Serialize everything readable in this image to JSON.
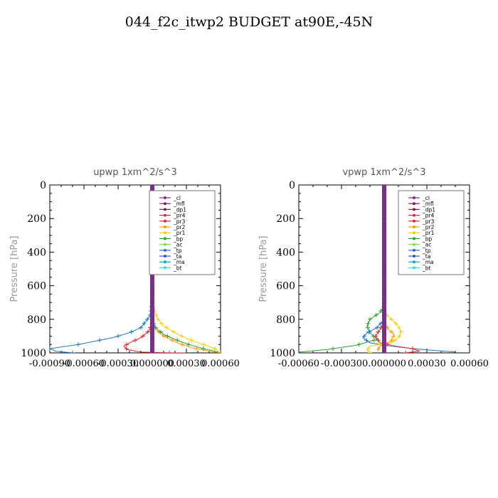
{
  "page": {
    "title": "044_f2c_itwp2  BUDGET at90E,-45N"
  },
  "chart_data": [
    {
      "type": "line",
      "title": "upwp   1xm^2/s^3",
      "ylabel": "Pressure [hPa]",
      "xlim": [
        -0.0009,
        0.0006
      ],
      "ylim": [
        1000,
        0
      ],
      "y_inverted": true,
      "xticks": [
        -0.0009,
        -0.0006,
        -0.0003,
        0.0,
        0.0003,
        0.0006
      ],
      "xtick_labels": [
        "-0.00090",
        "-0.00060",
        "-0.00030",
        "0.000000",
        "0.00030",
        "0.00060"
      ],
      "yticks": [
        0,
        200,
        400,
        600,
        800,
        1000
      ],
      "ytick_labels": [
        "0",
        "200",
        "400",
        "600",
        "800",
        "1000"
      ],
      "legend": {
        "position": "top-right",
        "entries": [
          "_cl",
          "_mfl",
          "_dp1",
          "_pr4",
          "_pr3",
          "_pr2",
          "_pr1",
          "_bp",
          "_ac",
          "_tp",
          "_ta",
          "_ma",
          "_bt"
        ]
      },
      "series": [
        {
          "name": "_tp",
          "color": "#1f77c4",
          "points": [
            [
              0,
              0
            ],
            [
              0,
              700
            ],
            [
              -2e-05,
              780
            ],
            [
              -0.0001,
              850
            ],
            [
              -0.0002,
              880
            ],
            [
              -0.00035,
              910
            ],
            [
              -0.0005,
              930
            ],
            [
              -0.00065,
              950
            ],
            [
              -0.0008,
              965
            ],
            [
              -0.0009,
              975
            ],
            [
              -0.00085,
              990
            ],
            [
              -0.0007,
              1000
            ]
          ]
        },
        {
          "name": "_pr1",
          "color": "#f5d000",
          "points": [
            [
              0,
              0
            ],
            [
              0,
              700
            ],
            [
              2e-05,
              750
            ],
            [
              5e-05,
              800
            ],
            [
              0.0001,
              840
            ],
            [
              0.0002,
              880
            ],
            [
              0.00032,
              920
            ],
            [
              0.00045,
              950
            ],
            [
              0.00055,
              975
            ],
            [
              0.0006,
              1000
            ]
          ]
        },
        {
          "name": "_pr2",
          "color": "#ff9900",
          "points": [
            [
              0,
              0
            ],
            [
              0,
              800
            ],
            [
              3e-05,
              860
            ],
            [
              0.0001,
              900
            ],
            [
              0.00022,
              940
            ],
            [
              0.00035,
              970
            ],
            [
              0.0005,
              990
            ],
            [
              0.0006,
              1000
            ]
          ]
        },
        {
          "name": "_bp",
          "color": "#2ca02c",
          "points": [
            [
              0,
              0
            ],
            [
              0,
              800
            ],
            [
              3e-05,
              850
            ],
            [
              0.0001,
              890
            ],
            [
              0.0002,
              920
            ],
            [
              0.00032,
              950
            ],
            [
              0.00045,
              975
            ],
            [
              0.00058,
              995
            ]
          ]
        },
        {
          "name": "_pr3",
          "color": "#e8242c",
          "points": [
            [
              0,
              0
            ],
            [
              0,
              820
            ],
            [
              -3e-05,
              870
            ],
            [
              -0.0001,
              910
            ],
            [
              -0.0002,
              940
            ],
            [
              -0.00025,
              960
            ],
            [
              -0.00022,
              980
            ],
            [
              -0.0001,
              995
            ],
            [
              0.00015,
              1000
            ],
            [
              0.0003,
              1000
            ]
          ]
        },
        {
          "name": "_cl",
          "color": "#7b2d8e",
          "points": [
            [
              0,
              0
            ],
            [
              0,
              1000
            ]
          ]
        }
      ]
    },
    {
      "type": "line",
      "title": "vpwp   1xm^2/s^3",
      "ylabel": "Pressure [hPa]",
      "xlim": [
        -0.0006,
        0.0006
      ],
      "ylim": [
        1000,
        0
      ],
      "y_inverted": true,
      "xticks": [
        -0.0006,
        -0.0003,
        0.0,
        0.0003,
        0.0006
      ],
      "xtick_labels": [
        "-0.00060",
        "-0.00030",
        "0.000000",
        "0.00030",
        "0.00060"
      ],
      "yticks": [
        0,
        200,
        400,
        600,
        800,
        1000
      ],
      "ytick_labels": [
        "0",
        "200",
        "400",
        "600",
        "800",
        "1000"
      ],
      "legend": {
        "position": "top-right",
        "entries": [
          "_cl",
          "_mfl",
          "_dp1",
          "_pr4",
          "_pr3",
          "_pr2",
          "_pr1",
          "_bp",
          "_ac",
          "_tp",
          "_ta",
          "_ma",
          "_bt"
        ]
      },
      "series": [
        {
          "name": "_bp",
          "color": "#2ca02c",
          "points": [
            [
              0,
              0
            ],
            [
              0,
              720
            ],
            [
              -3e-05,
              760
            ],
            [
              -0.0001,
              800
            ],
            [
              -0.00012,
              840
            ],
            [
              -0.0001,
              880
            ],
            [
              -5e-05,
              920
            ],
            [
              -0.0002,
              955
            ],
            [
              -0.0004,
              980
            ],
            [
              -0.0006,
              995
            ]
          ]
        },
        {
          "name": "_tp",
          "color": "#1f77c4",
          "points": [
            [
              0,
              0
            ],
            [
              0,
              800
            ],
            [
              -5e-05,
              850
            ],
            [
              -0.00012,
              880
            ],
            [
              -0.00015,
              910
            ],
            [
              -0.0001,
              940
            ],
            [
              5e-05,
              960
            ],
            [
              0.0002,
              975
            ],
            [
              0.00035,
              985
            ],
            [
              0.0005,
              995
            ]
          ]
        },
        {
          "name": "_pr1",
          "color": "#f5d000",
          "points": [
            [
              0,
              0
            ],
            [
              0,
              760
            ],
            [
              5e-05,
              800
            ],
            [
              0.0001,
              840
            ],
            [
              0.00012,
              880
            ],
            [
              0.0001,
              910
            ],
            [
              5e-05,
              940
            ],
            [
              -0.0001,
              960
            ],
            [
              -0.00012,
              985
            ],
            [
              -0.0001,
              1000
            ]
          ]
        },
        {
          "name": "_pr2",
          "color": "#ff9900",
          "points": [
            [
              0,
              0
            ],
            [
              0,
              820
            ],
            [
              3e-05,
              860
            ],
            [
              7e-05,
              890
            ],
            [
              5e-05,
              930
            ],
            [
              -3e-05,
              960
            ],
            [
              -5e-05,
              990
            ]
          ]
        },
        {
          "name": "_pr3",
          "color": "#e8242c",
          "points": [
            [
              0,
              0
            ],
            [
              0,
              820
            ],
            [
              -3e-05,
              860
            ],
            [
              -6e-05,
              900
            ],
            [
              -3e-05,
              940
            ],
            [
              8e-05,
              960
            ],
            [
              0.0002,
              975
            ],
            [
              0.00025,
              990
            ],
            [
              0.00015,
              1000
            ]
          ]
        },
        {
          "name": "_cl",
          "color": "#7b2d8e",
          "points": [
            [
              0,
              0
            ],
            [
              0,
              1000
            ]
          ]
        }
      ]
    }
  ]
}
